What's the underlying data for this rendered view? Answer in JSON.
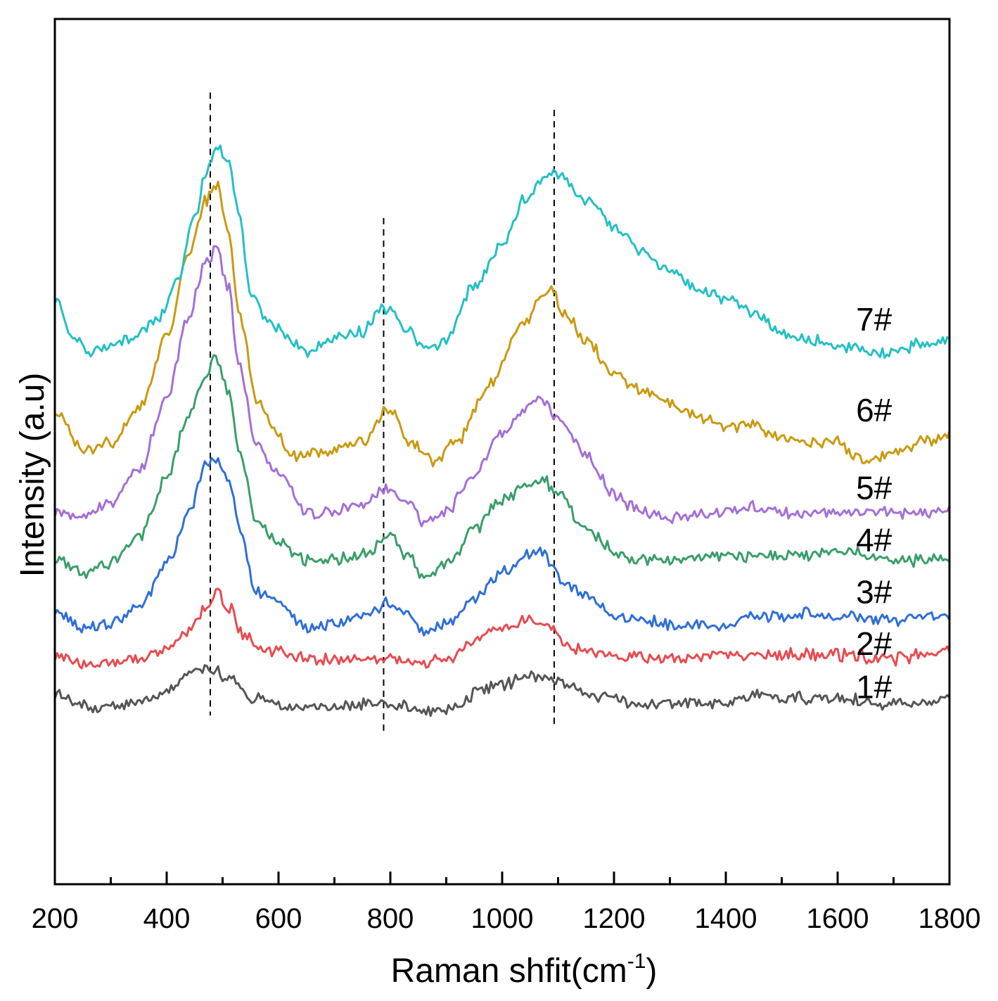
{
  "chart_data": {
    "type": "line",
    "title": "",
    "xlabel_main": "Raman shfit(cm",
    "xlabel_sup": "-1",
    "xlabel_close": ")",
    "ylabel": "Intensity (a.u)",
    "xlim": [
      200,
      1800
    ],
    "ylim": [
      0,
      100
    ],
    "x_ticks": [
      200,
      400,
      600,
      800,
      1000,
      1200,
      1400,
      1600,
      1800
    ],
    "x_tick_labels": [
      "200",
      "400",
      "600",
      "800",
      "1000",
      "1200",
      "1400",
      "1600",
      "1800"
    ],
    "x_minor_ticks": [
      300,
      500,
      700,
      900,
      1100,
      1300,
      1500,
      1700
    ],
    "y_ticks_shown": false,
    "reference_lines": [
      {
        "x": 478,
        "y_from": 19.5,
        "y_to": 91.5
      },
      {
        "x": 788,
        "y_from": 17.5,
        "y_to": 77
      },
      {
        "x": 1093,
        "y_from": 18.5,
        "y_to": 89.5
      }
    ],
    "series": [
      {
        "name": "1#",
        "label": "1#",
        "color": "#555555",
        "points": [
          [
            200,
            22
          ],
          [
            250,
            20.5
          ],
          [
            300,
            20.5
          ],
          [
            350,
            21
          ],
          [
            400,
            22.5
          ],
          [
            440,
            24
          ],
          [
            478,
            25
          ],
          [
            510,
            24
          ],
          [
            560,
            21.5
          ],
          [
            620,
            20.5
          ],
          [
            700,
            20.5
          ],
          [
            780,
            21
          ],
          [
            820,
            20.5
          ],
          [
            880,
            19.8
          ],
          [
            920,
            20.5
          ],
          [
            960,
            22.5
          ],
          [
            1000,
            23
          ],
          [
            1050,
            24
          ],
          [
            1080,
            24
          ],
          [
            1100,
            23.5
          ],
          [
            1150,
            22
          ],
          [
            1200,
            21.5
          ],
          [
            1250,
            20.5
          ],
          [
            1300,
            21
          ],
          [
            1400,
            21
          ],
          [
            1460,
            22
          ],
          [
            1500,
            21.5
          ],
          [
            1600,
            21.5
          ],
          [
            1700,
            20.8
          ],
          [
            1760,
            21
          ],
          [
            1800,
            22
          ]
        ]
      },
      {
        "name": "2#",
        "label": "2#",
        "color": "#e84b50",
        "points": [
          [
            200,
            26.5
          ],
          [
            250,
            25.5
          ],
          [
            300,
            25.5
          ],
          [
            350,
            26
          ],
          [
            400,
            27.5
          ],
          [
            440,
            29.5
          ],
          [
            470,
            32
          ],
          [
            490,
            34
          ],
          [
            510,
            32
          ],
          [
            540,
            28.5
          ],
          [
            580,
            27
          ],
          [
            650,
            26
          ],
          [
            720,
            26
          ],
          [
            800,
            26
          ],
          [
            850,
            25.5
          ],
          [
            900,
            26
          ],
          [
            950,
            28
          ],
          [
            1000,
            29.5
          ],
          [
            1050,
            30.5
          ],
          [
            1080,
            30.5
          ],
          [
            1100,
            29
          ],
          [
            1110,
            27.5
          ],
          [
            1150,
            27
          ],
          [
            1200,
            26.5
          ],
          [
            1300,
            26
          ],
          [
            1400,
            26.5
          ],
          [
            1500,
            26.5
          ],
          [
            1600,
            26.5
          ],
          [
            1700,
            26
          ],
          [
            1750,
            26.5
          ],
          [
            1800,
            27
          ]
        ]
      },
      {
        "name": "3#",
        "label": "3#",
        "color": "#2f6fd6",
        "points": [
          [
            200,
            32
          ],
          [
            250,
            29.5
          ],
          [
            300,
            30
          ],
          [
            350,
            32
          ],
          [
            400,
            37
          ],
          [
            440,
            43
          ],
          [
            470,
            48.5
          ],
          [
            490,
            49.5
          ],
          [
            510,
            47
          ],
          [
            530,
            41
          ],
          [
            560,
            34
          ],
          [
            600,
            32.5
          ],
          [
            650,
            29.5
          ],
          [
            700,
            30
          ],
          [
            750,
            31
          ],
          [
            800,
            32.5
          ],
          [
            830,
            31.5
          ],
          [
            860,
            29.5
          ],
          [
            900,
            30
          ],
          [
            950,
            33
          ],
          [
            1000,
            36
          ],
          [
            1040,
            38
          ],
          [
            1070,
            38.5
          ],
          [
            1090,
            37
          ],
          [
            1110,
            35
          ],
          [
            1150,
            33.5
          ],
          [
            1200,
            31
          ],
          [
            1250,
            30.5
          ],
          [
            1300,
            30
          ],
          [
            1400,
            30
          ],
          [
            1450,
            31
          ],
          [
            1500,
            31
          ],
          [
            1550,
            31.5
          ],
          [
            1600,
            31
          ],
          [
            1700,
            30.5
          ],
          [
            1750,
            31
          ],
          [
            1800,
            31
          ]
        ]
      },
      {
        "name": "4#",
        "label": "4#",
        "color": "#3a9e6a",
        "points": [
          [
            200,
            37.5
          ],
          [
            250,
            36
          ],
          [
            300,
            37
          ],
          [
            350,
            40
          ],
          [
            400,
            47
          ],
          [
            440,
            54
          ],
          [
            470,
            59
          ],
          [
            488,
            61
          ],
          [
            510,
            57
          ],
          [
            530,
            50
          ],
          [
            560,
            42
          ],
          [
            600,
            39.5
          ],
          [
            650,
            37.5
          ],
          [
            700,
            37.5
          ],
          [
            750,
            38
          ],
          [
            800,
            40.5
          ],
          [
            830,
            38
          ],
          [
            860,
            35.5
          ],
          [
            900,
            37
          ],
          [
            950,
            41
          ],
          [
            1000,
            44.5
          ],
          [
            1050,
            46.5
          ],
          [
            1070,
            47
          ],
          [
            1100,
            45
          ],
          [
            1150,
            41
          ],
          [
            1200,
            38.5
          ],
          [
            1250,
            37.5
          ],
          [
            1300,
            37.5
          ],
          [
            1400,
            38
          ],
          [
            1500,
            38
          ],
          [
            1600,
            38.5
          ],
          [
            1700,
            37.5
          ],
          [
            1750,
            37.5
          ],
          [
            1800,
            38
          ]
        ]
      },
      {
        "name": "5#",
        "label": "5#",
        "color": "#a46fd6",
        "points": [
          [
            200,
            43
          ],
          [
            250,
            42.5
          ],
          [
            300,
            44
          ],
          [
            350,
            48
          ],
          [
            400,
            56
          ],
          [
            440,
            66
          ],
          [
            470,
            72
          ],
          [
            490,
            73.5
          ],
          [
            510,
            69
          ],
          [
            530,
            60
          ],
          [
            560,
            51
          ],
          [
            600,
            47.5
          ],
          [
            650,
            43
          ],
          [
            700,
            43
          ],
          [
            750,
            44
          ],
          [
            800,
            46
          ],
          [
            830,
            44
          ],
          [
            860,
            42
          ],
          [
            900,
            43
          ],
          [
            950,
            47.5
          ],
          [
            1000,
            52
          ],
          [
            1040,
            55
          ],
          [
            1070,
            56
          ],
          [
            1100,
            54
          ],
          [
            1150,
            49.5
          ],
          [
            1200,
            45
          ],
          [
            1250,
            43
          ],
          [
            1300,
            42.5
          ],
          [
            1400,
            43
          ],
          [
            1450,
            43.5
          ],
          [
            1500,
            43
          ],
          [
            1600,
            43
          ],
          [
            1700,
            43
          ],
          [
            1800,
            43
          ]
        ]
      },
      {
        "name": "6#",
        "label": "6#",
        "color": "#c99a10",
        "points": [
          [
            200,
            55
          ],
          [
            250,
            50
          ],
          [
            300,
            51
          ],
          [
            350,
            55
          ],
          [
            400,
            63
          ],
          [
            440,
            73
          ],
          [
            470,
            79
          ],
          [
            490,
            81
          ],
          [
            510,
            76
          ],
          [
            530,
            66
          ],
          [
            560,
            56
          ],
          [
            600,
            52
          ],
          [
            620,
            49.5
          ],
          [
            680,
            50
          ],
          [
            750,
            51
          ],
          [
            790,
            54.5
          ],
          [
            810,
            54.5
          ],
          [
            830,
            51
          ],
          [
            880,
            49
          ],
          [
            920,
            51.5
          ],
          [
            980,
            58
          ],
          [
            1040,
            65
          ],
          [
            1070,
            68
          ],
          [
            1090,
            68.5
          ],
          [
            1110,
            66
          ],
          [
            1150,
            63
          ],
          [
            1200,
            59
          ],
          [
            1250,
            57
          ],
          [
            1300,
            55.5
          ],
          [
            1350,
            54
          ],
          [
            1400,
            53
          ],
          [
            1450,
            53
          ],
          [
            1500,
            51.5
          ],
          [
            1550,
            51
          ],
          [
            1600,
            51
          ],
          [
            1650,
            49
          ],
          [
            1700,
            50
          ],
          [
            1750,
            51
          ],
          [
            1800,
            52
          ]
        ]
      },
      {
        "name": "7#",
        "label": "7#",
        "color": "#22c0c4",
        "points": [
          [
            200,
            68
          ],
          [
            230,
            63
          ],
          [
            270,
            61.5
          ],
          [
            330,
            63
          ],
          [
            380,
            65
          ],
          [
            420,
            70
          ],
          [
            450,
            77
          ],
          [
            470,
            82
          ],
          [
            490,
            85
          ],
          [
            510,
            84
          ],
          [
            530,
            77
          ],
          [
            550,
            68
          ],
          [
            580,
            65
          ],
          [
            620,
            63
          ],
          [
            650,
            61.5
          ],
          [
            700,
            63
          ],
          [
            750,
            64
          ],
          [
            790,
            66.5
          ],
          [
            800,
            67
          ],
          [
            830,
            64
          ],
          [
            870,
            61.5
          ],
          [
            900,
            63
          ],
          [
            950,
            69
          ],
          [
            1000,
            74
          ],
          [
            1040,
            79
          ],
          [
            1080,
            82
          ],
          [
            1100,
            82
          ],
          [
            1150,
            79
          ],
          [
            1200,
            76
          ],
          [
            1250,
            73
          ],
          [
            1300,
            71
          ],
          [
            1350,
            69
          ],
          [
            1400,
            67.5
          ],
          [
            1450,
            66
          ],
          [
            1500,
            63.5
          ],
          [
            1550,
            63
          ],
          [
            1600,
            62.5
          ],
          [
            1650,
            61.5
          ],
          [
            1700,
            61.5
          ],
          [
            1750,
            62.5
          ],
          [
            1800,
            63
          ]
        ]
      }
    ],
    "label_positions": [
      {
        "series": "1#",
        "x": 1665,
        "y": 21.5
      },
      {
        "series": "2#",
        "x": 1665,
        "y": 26.5
      },
      {
        "series": "3#",
        "x": 1665,
        "y": 32.5
      },
      {
        "series": "4#",
        "x": 1665,
        "y": 38.5
      },
      {
        "series": "5#",
        "x": 1665,
        "y": 44.5
      },
      {
        "series": "6#",
        "x": 1665,
        "y": 53.5
      },
      {
        "series": "7#",
        "x": 1665,
        "y": 64
      }
    ]
  }
}
